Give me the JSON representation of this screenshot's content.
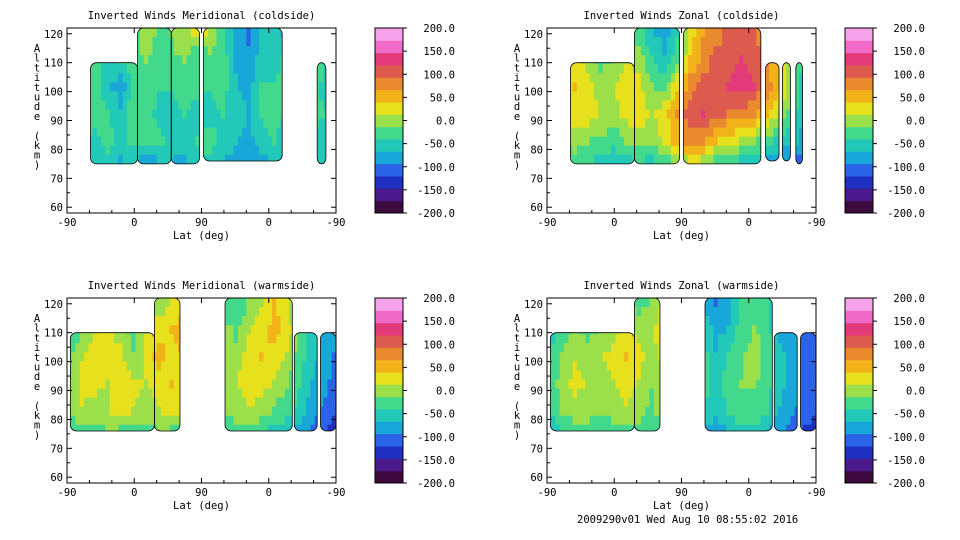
{
  "footer": "2009290v01 Wed Aug 10 08:55:02 2016",
  "colors": {
    "scale": [
      "#3d0a3d",
      "#4a1a8c",
      "#1f2fbf",
      "#2a63e6",
      "#19a7d9",
      "#22c9b8",
      "#43d98d",
      "#9be04a",
      "#e7e01c",
      "#f2b21a",
      "#e98a2e",
      "#dd5a4f",
      "#e33a7a",
      "#f06bc8",
      "#f7a3ea"
    ],
    "background": "#ffffff",
    "contour": "#000000"
  },
  "chart_data": [
    {
      "type": "heatmap",
      "title": "Inverted Winds Meridional (coldside)",
      "xlabel": "Lat (deg)",
      "ylabel": "Altitude (km)",
      "x_ticks": [
        "-90",
        "0",
        "90",
        "0",
        "-90"
      ],
      "y_ticks": [
        "60",
        "70",
        "80",
        "90",
        "100",
        "110",
        "120"
      ],
      "ylim": [
        58,
        122
      ],
      "colorbar": {
        "min": -200.0,
        "max": 200.0,
        "ticks": [
          "200.0",
          "150.0",
          "100.0",
          "50.0",
          "0.0",
          "-50.0",
          "-100.0",
          "-150.0",
          "-200.0"
        ]
      },
      "field": [
        [
          -80,
          -40,
          -10,
          -30,
          -60,
          -30,
          10,
          -20,
          -10,
          0,
          20,
          10,
          -40,
          -80,
          -100,
          -60,
          -50,
          -80,
          -40,
          -20,
          -30,
          -60
        ],
        [
          -60,
          -20,
          -30,
          -50,
          -40,
          -30,
          -10,
          -30,
          -20,
          -10,
          -40,
          -20,
          -20,
          -70,
          -90,
          -50,
          -60,
          -30,
          -10,
          -10,
          -40,
          -50
        ],
        [
          -40,
          -10,
          -20,
          -60,
          -80,
          -40,
          -20,
          -40,
          -40,
          -20,
          -30,
          -40,
          -30,
          -60,
          -80,
          -40,
          -40,
          -20,
          -20,
          -30,
          -50,
          -40
        ],
        [
          -50,
          -20,
          -30,
          -40,
          -60,
          -20,
          -30,
          -50,
          -60,
          -40,
          -60,
          -50,
          -40,
          -50,
          -70,
          -40,
          -30,
          -40,
          -50,
          -30,
          -40,
          -60
        ],
        [
          -70,
          -40,
          -50,
          -30,
          -50,
          -30,
          -40,
          -30,
          -50,
          -60,
          -40,
          -30,
          -50,
          -60,
          -80,
          -50,
          -40,
          -60,
          -70,
          -50,
          -50,
          -70
        ],
        [
          -90,
          -60,
          -70,
          -60,
          -80,
          -70,
          -90,
          -80,
          -70,
          -80,
          -60,
          -50,
          -70,
          -90,
          -100,
          -80,
          -70,
          -80,
          -90,
          -70,
          -60,
          -80
        ]
      ],
      "coverage": "lat -65..-10 (alt 75-110), -10..0 (alt 75-122), 0..90 (alt 75-122), gap, 90..30 (alt 75-122)"
    },
    {
      "type": "heatmap",
      "title": "Inverted Winds Zonal (coldside)",
      "xlabel": "Lat (deg)",
      "ylabel": "Altitude (km)",
      "x_ticks": [
        "-90",
        "0",
        "90",
        "0",
        "-90"
      ],
      "y_ticks": [
        "60",
        "70",
        "80",
        "90",
        "100",
        "110",
        "120"
      ],
      "ylim": [
        58,
        122
      ],
      "colorbar": {
        "min": -200.0,
        "max": 200.0,
        "ticks": [
          "200.0",
          "150.0",
          "100.0",
          "50.0",
          "0.0",
          "-50.0",
          "-100.0",
          "-150.0",
          "-200.0"
        ]
      },
      "field": [
        [
          -60,
          -20,
          10,
          -10,
          -40,
          -30,
          -10,
          -30,
          -60,
          -80,
          -50,
          20,
          60,
          80,
          100,
          110,
          100,
          60,
          30,
          -20,
          -60,
          -80
        ],
        [
          -40,
          0,
          20,
          0,
          -20,
          -10,
          10,
          0,
          -40,
          -60,
          -20,
          40,
          80,
          100,
          110,
          120,
          110,
          70,
          40,
          0,
          -50,
          -70
        ],
        [
          -20,
          20,
          40,
          20,
          0,
          10,
          30,
          20,
          -10,
          -20,
          30,
          80,
          100,
          110,
          120,
          130,
          120,
          80,
          40,
          -10,
          -60,
          -80
        ],
        [
          -30,
          10,
          30,
          30,
          10,
          0,
          20,
          30,
          10,
          30,
          70,
          110,
          120,
          100,
          90,
          80,
          70,
          50,
          10,
          -30,
          -70,
          -90
        ],
        [
          -50,
          -10,
          0,
          -10,
          -20,
          -30,
          -10,
          0,
          -10,
          20,
          50,
          80,
          70,
          40,
          20,
          10,
          -10,
          -30,
          -50,
          -60,
          -80,
          -100
        ],
        [
          -80,
          -50,
          -40,
          -50,
          -60,
          -70,
          -60,
          -50,
          -60,
          -50,
          -30,
          -10,
          -20,
          -50,
          -60,
          -70,
          -80,
          -90,
          -100,
          -110,
          -120,
          -130
        ]
      ],
      "coverage": "lat -65..0 (alt 75-110), 0..90 (alt 75-122), gap, 90..10 (alt 75-122), 20..-90 bands (alt 75-110)"
    },
    {
      "type": "heatmap",
      "title": "Inverted Winds Meridional (warmside)",
      "xlabel": "Lat (deg)",
      "ylabel": "Altitude (km)",
      "x_ticks": [
        "-90",
        "0",
        "90",
        "0",
        "-90"
      ],
      "y_ticks": [
        "60",
        "70",
        "80",
        "90",
        "100",
        "110",
        "120"
      ],
      "ylim": [
        58,
        122
      ],
      "colorbar": {
        "min": -200.0,
        "max": 200.0,
        "ticks": [
          "200.0",
          "150.0",
          "100.0",
          "50.0",
          "0.0",
          "-50.0",
          "-100.0",
          "-150.0",
          "-200.0"
        ]
      },
      "field": [
        [
          -60,
          -30,
          -10,
          -20,
          -10,
          0,
          10,
          -10,
          20,
          40,
          30,
          20,
          -20,
          -40,
          -10,
          10,
          40,
          20,
          -30,
          -60,
          -80,
          -100
        ],
        [
          -40,
          -10,
          10,
          20,
          0,
          -20,
          10,
          30,
          40,
          50,
          40,
          30,
          0,
          -20,
          10,
          30,
          50,
          30,
          -20,
          -50,
          -70,
          -90
        ],
        [
          -20,
          10,
          30,
          30,
          20,
          -10,
          20,
          50,
          30,
          40,
          30,
          20,
          10,
          0,
          20,
          40,
          30,
          10,
          -30,
          -60,
          -80,
          -100
        ],
        [
          -10,
          20,
          20,
          10,
          30,
          20,
          10,
          20,
          40,
          30,
          10,
          10,
          0,
          10,
          30,
          20,
          10,
          -10,
          -40,
          -70,
          -90,
          -110
        ],
        [
          -10,
          10,
          0,
          10,
          20,
          10,
          0,
          10,
          20,
          10,
          0,
          -10,
          -20,
          0,
          10,
          0,
          -20,
          -30,
          -50,
          -80,
          -100,
          -120
        ],
        [
          -40,
          -30,
          -30,
          -20,
          -30,
          -40,
          -30,
          -20,
          -30,
          -40,
          -50,
          -40,
          -50,
          -40,
          -30,
          -50,
          -60,
          -70,
          -90,
          -110,
          -130,
          -140
        ]
      ],
      "coverage": "lat -90..20 (alt 76-110), 20..40 (alt 76-122), gap, 70..-30 (alt 76-122), -35..-90 bands (alt 76-110)"
    },
    {
      "type": "heatmap",
      "title": "Inverted Winds Zonal (warmside)",
      "xlabel": "Lat (deg)",
      "ylabel": "Altitude (km)",
      "x_ticks": [
        "-90",
        "0",
        "90",
        "0",
        "-90"
      ],
      "y_ticks": [
        "60",
        "70",
        "80",
        "90",
        "100",
        "110",
        "120"
      ],
      "ylim": [
        58,
        122
      ],
      "colorbar": {
        "min": -200.0,
        "max": 200.0,
        "ticks": [
          "200.0",
          "150.0",
          "100.0",
          "50.0",
          "0.0",
          "-50.0",
          "-100.0",
          "-150.0",
          "-200.0"
        ]
      },
      "field": [
        [
          -80,
          -50,
          -30,
          -40,
          -30,
          -20,
          0,
          -20,
          -10,
          20,
          40,
          10,
          -60,
          -100,
          -80,
          -40,
          -20,
          -40,
          -80,
          -100,
          -120,
          -130
        ],
        [
          -60,
          -30,
          -10,
          -20,
          -10,
          0,
          20,
          0,
          10,
          30,
          50,
          20,
          -40,
          -80,
          -60,
          -30,
          -10,
          -30,
          -70,
          -90,
          -110,
          -120
        ],
        [
          -40,
          -10,
          10,
          0,
          10,
          20,
          40,
          20,
          0,
          20,
          30,
          10,
          -20,
          -60,
          -40,
          -20,
          0,
          -20,
          -60,
          -80,
          -100,
          -110
        ],
        [
          -30,
          0,
          20,
          10,
          0,
          10,
          20,
          10,
          -10,
          10,
          20,
          0,
          -30,
          -50,
          -30,
          -10,
          -10,
          -30,
          -60,
          -80,
          -100,
          -110
        ],
        [
          -40,
          -10,
          0,
          0,
          -10,
          0,
          10,
          0,
          -20,
          0,
          10,
          -10,
          -40,
          -60,
          -40,
          -20,
          -20,
          -40,
          -70,
          -90,
          -110,
          -120
        ],
        [
          -70,
          -50,
          -40,
          -40,
          -50,
          -40,
          -30,
          -40,
          -50,
          -40,
          -30,
          -50,
          -70,
          -90,
          -70,
          -60,
          -60,
          -70,
          -90,
          -110,
          -130,
          -140
        ]
      ],
      "coverage": "lat -90..20 (alt 76-110), 20..40 (alt 76-122), gap, 70..-30 (alt 76-122), -35..-90 bands (alt 76-110)"
    }
  ]
}
